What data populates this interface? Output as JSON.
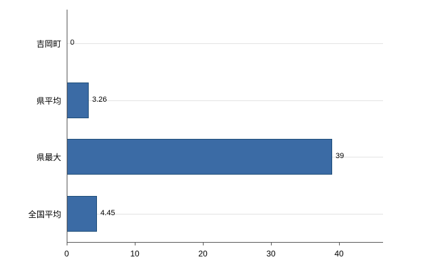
{
  "chart_data": {
    "type": "bar",
    "orientation": "horizontal",
    "title": "",
    "xlabel": "",
    "ylabel": "",
    "categories": [
      "吉岡町",
      "県平均",
      "県最大",
      "全国平均"
    ],
    "values": [
      0,
      3.26,
      39,
      4.45
    ],
    "value_labels": [
      "0",
      "3.26",
      "39",
      "4.45"
    ],
    "x_ticks": [
      0,
      10,
      20,
      30,
      40
    ],
    "xlim": [
      0,
      46.5
    ],
    "grid": "horizontal-category-lines",
    "legend": "none"
  },
  "colors": {
    "bar_fill": "#3b6ba5",
    "bar_border": "#1f4e79",
    "gridline": "#e3e3e3",
    "axis": "#5a5a5a",
    "text": "#000000",
    "background": "#ffffff"
  }
}
